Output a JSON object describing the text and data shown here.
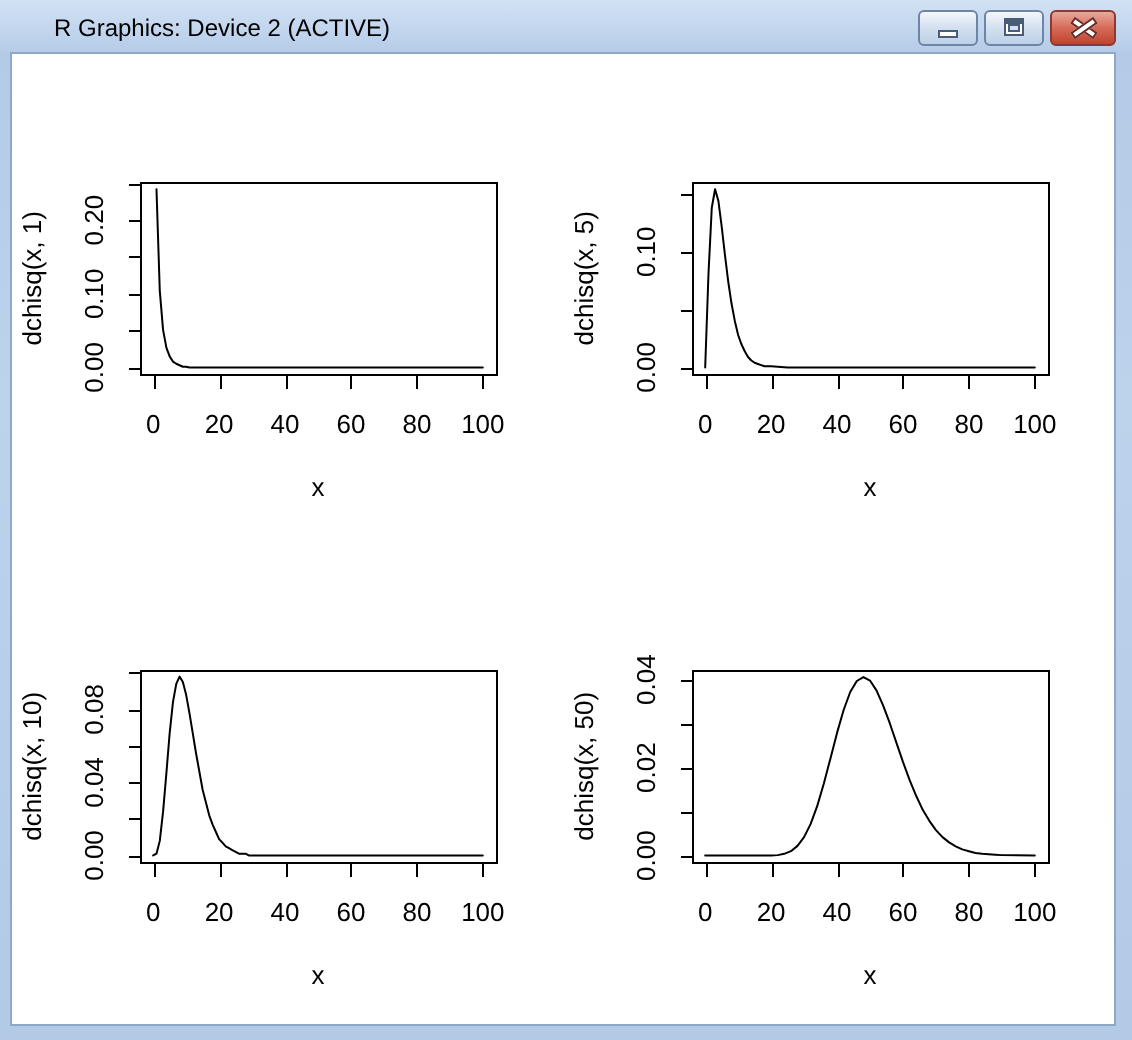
{
  "chart_data": [
    {
      "type": "other",
      "title": "R Graphics: Device 2 (ACTIVE)"
    },
    {
      "type": "line",
      "xlabel": "x",
      "ylabel": "dchisq(x, 1)",
      "color": "#000000",
      "marker": "none",
      "line_style": "solid",
      "xlim": [
        -4,
        104
      ],
      "xticks": [
        0,
        20,
        40,
        60,
        80,
        100
      ],
      "ylim": [
        -0.0097,
        0.2517
      ],
      "yticks": [
        {
          "value": 0,
          "label": "0.00"
        },
        {
          "value": 0.05,
          "label": null
        },
        {
          "value": 0.1,
          "label": "0.10"
        },
        {
          "value": 0.15,
          "label": null
        },
        {
          "value": 0.2,
          "label": "0.20"
        },
        {
          "value": 0.25,
          "label": null
        }
      ],
      "x": [
        1,
        2,
        3,
        4,
        5,
        6,
        7,
        8,
        9,
        10,
        11,
        12,
        13,
        14,
        15,
        20,
        25,
        30,
        35,
        40,
        45,
        50,
        55,
        60,
        65,
        70,
        75,
        80,
        85,
        90,
        95,
        100
      ],
      "values": [
        0.242,
        0.104,
        0.051,
        0.027,
        0.015,
        0.008,
        0.005,
        0.003,
        0.001,
        0.001,
        0,
        0,
        0,
        0,
        0,
        0,
        0,
        0,
        0,
        0,
        0,
        0,
        0,
        0,
        0,
        0,
        0,
        0,
        0,
        0,
        0,
        0
      ]
    },
    {
      "type": "line",
      "xlabel": "x",
      "ylabel": "dchisq(x, 5)",
      "color": "#000000",
      "marker": "none",
      "line_style": "solid",
      "xlim": [
        -4,
        104
      ],
      "xticks": [
        0,
        20,
        40,
        60,
        80,
        100
      ],
      "ylim": [
        -0.0062,
        0.1603
      ],
      "yticks": [
        {
          "value": 0,
          "label": "0.00"
        },
        {
          "value": 0.05,
          "label": null
        },
        {
          "value": 0.1,
          "label": "0.10"
        },
        {
          "value": 0.15,
          "label": null
        }
      ],
      "x": [
        0,
        1,
        2,
        3,
        4,
        5,
        6,
        7,
        8,
        9,
        10,
        11,
        12,
        13,
        14,
        15,
        16,
        17,
        18,
        19,
        20,
        25,
        30,
        35,
        40,
        45,
        50,
        55,
        60,
        65,
        70,
        75,
        80,
        85,
        90,
        95,
        100
      ],
      "values": [
        0,
        0.081,
        0.138,
        0.154,
        0.144,
        0.122,
        0.097,
        0.074,
        0.055,
        0.04,
        0.028,
        0.02,
        0.014,
        0.009,
        0.006,
        0.004,
        0.003,
        0.002,
        0.001,
        0.001,
        0.001,
        0,
        0,
        0,
        0,
        0,
        0,
        0,
        0,
        0,
        0,
        0,
        0,
        0,
        0,
        0,
        0
      ]
    },
    {
      "type": "line",
      "xlabel": "x",
      "ylabel": "dchisq(x, 10)",
      "color": "#000000",
      "marker": "none",
      "line_style": "solid",
      "xlim": [
        -4,
        104
      ],
      "xticks": [
        0,
        20,
        40,
        60,
        80,
        100
      ],
      "ylim": [
        -0.0039,
        0.1016
      ],
      "yticks": [
        {
          "value": 0,
          "label": "0.00"
        },
        {
          "value": 0.02,
          "label": null
        },
        {
          "value": 0.04,
          "label": "0.04"
        },
        {
          "value": 0.06,
          "label": null
        },
        {
          "value": 0.08,
          "label": "0.08"
        },
        {
          "value": 0.1,
          "label": null
        }
      ],
      "x": [
        0,
        1,
        2,
        3,
        4,
        5,
        6,
        7,
        8,
        9,
        10,
        11,
        12,
        13,
        14,
        15,
        16,
        17,
        18,
        19,
        20,
        21,
        22,
        23,
        24,
        25,
        26,
        27,
        28,
        29,
        30,
        35,
        40,
        45,
        50,
        55,
        60,
        65,
        70,
        75,
        80,
        85,
        90,
        95,
        100
      ],
      "values": [
        0,
        0.001,
        0.008,
        0.024,
        0.045,
        0.067,
        0.084,
        0.094,
        0.098,
        0.095,
        0.088,
        0.078,
        0.067,
        0.056,
        0.046,
        0.036,
        0.029,
        0.022,
        0.017,
        0.013,
        0.009,
        0.007,
        0.005,
        0.004,
        0.003,
        0.002,
        0.001,
        0.001,
        0.001,
        0,
        0,
        0,
        0,
        0,
        0,
        0,
        0,
        0,
        0,
        0,
        0,
        0,
        0,
        0,
        0
      ]
    },
    {
      "type": "line",
      "xlabel": "x",
      "ylabel": "dchisq(x, 50)",
      "color": "#000000",
      "marker": "none",
      "line_style": "solid",
      "xlim": [
        -4,
        104
      ],
      "xticks": [
        0,
        20,
        40,
        60,
        80,
        100
      ],
      "ylim": [
        -0.0016,
        0.0422
      ],
      "yticks": [
        {
          "value": 0,
          "label": "0.00"
        },
        {
          "value": 0.01,
          "label": null
        },
        {
          "value": 0.02,
          "label": "0.02"
        },
        {
          "value": 0.03,
          "label": null
        },
        {
          "value": 0.04,
          "label": "0.04"
        }
      ],
      "x": [
        0,
        10,
        18,
        20,
        22,
        24,
        26,
        28,
        30,
        32,
        34,
        36,
        38,
        40,
        42,
        44,
        46,
        48,
        50,
        52,
        54,
        56,
        58,
        60,
        62,
        64,
        66,
        68,
        70,
        72,
        74,
        76,
        78,
        80,
        82,
        84,
        86,
        88,
        90,
        100
      ],
      "values": [
        0,
        0,
        0,
        0,
        0.0001,
        0.0004,
        0.001,
        0.0022,
        0.0042,
        0.0072,
        0.0113,
        0.0164,
        0.0221,
        0.0279,
        0.0331,
        0.0372,
        0.0397,
        0.0406,
        0.0398,
        0.0375,
        0.0341,
        0.0301,
        0.0257,
        0.0213,
        0.0172,
        0.0136,
        0.0104,
        0.0079,
        0.0058,
        0.0042,
        0.003,
        0.0021,
        0.0014,
        0.001,
        0.0006,
        0.0004,
        0.0003,
        0.0002,
        0.0001,
        0
      ]
    }
  ]
}
